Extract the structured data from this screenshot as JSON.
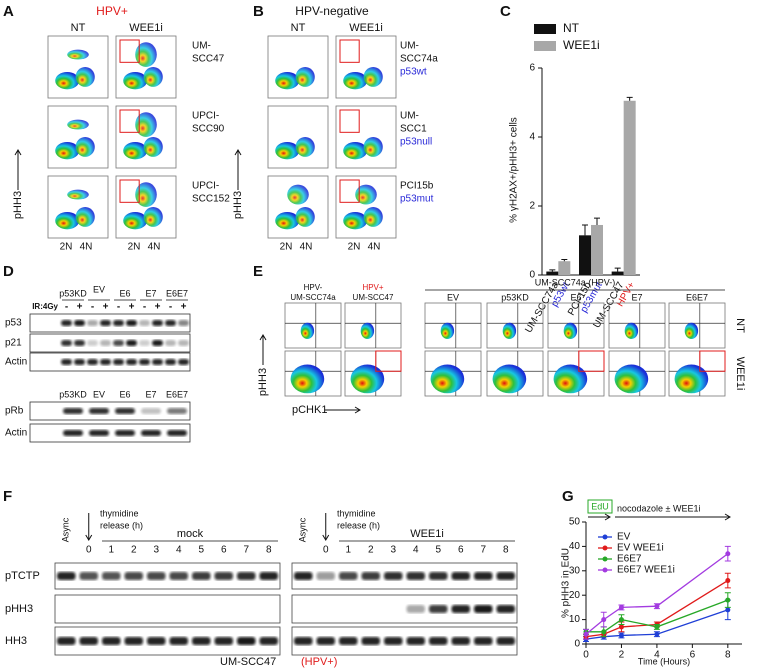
{
  "panels": {
    "A": {
      "letter": "A",
      "title": "HPV+",
      "columns": [
        "NT",
        "WEE1i"
      ],
      "rows": [
        [
          "UM-",
          "SCC47"
        ],
        [
          "UPCI-",
          "SCC90"
        ],
        [
          "UPCI-",
          "SCC152"
        ]
      ],
      "y_axis": "pHH3",
      "x_ticks": [
        "2N",
        "4N"
      ]
    },
    "B": {
      "letter": "B",
      "title": "HPV-negative",
      "columns": [
        "NT",
        "WEE1i"
      ],
      "rows": [
        {
          "lines": [
            "UM-",
            "SCC74a"
          ],
          "status": "p53wt"
        },
        {
          "lines": [
            "UM-",
            "SCC1"
          ],
          "status": "p53null"
        },
        {
          "lines": [
            "PCI15b"
          ],
          "status": "p53mut"
        }
      ],
      "y_axis": "pHH3",
      "x_ticks": [
        "2N",
        "4N"
      ]
    },
    "C": {
      "letter": "C"
    },
    "D": {
      "letter": "D",
      "treatment": "IR:4Gy",
      "signs": [
        "-",
        "+",
        "-",
        "+",
        "-",
        "+",
        "-",
        "+",
        "-",
        "+"
      ],
      "groups": [
        "p53KD",
        "EV",
        "E6",
        "E7",
        "E6E7"
      ],
      "rows": [
        "p53",
        "p21",
        "Actin"
      ],
      "lower_lanes": [
        "p53KD",
        "EV",
        "E6",
        "E7",
        "E6E7"
      ],
      "lower_rows": [
        "pRb",
        "Actin"
      ]
    },
    "E": {
      "letter": "E",
      "controls": [
        [
          "HPV-",
          "UM-SCC74a"
        ],
        [
          "HPV+",
          "UM-SCC47"
        ]
      ],
      "group": "UM-SCC74a (HPV-)",
      "lanes": [
        "EV",
        "p53KD",
        "E6",
        "E7",
        "E6E7"
      ],
      "rows": [
        "NT",
        "WEE1i"
      ],
      "y_axis": "pHH3",
      "x_axis": "pCHK1"
    },
    "F": {
      "letter": "F",
      "blots": [
        {
          "lanes": [
            "Async",
            "0",
            "1",
            "2",
            "3",
            "4",
            "5",
            "6",
            "7",
            "8"
          ],
          "release": [
            "thymidine",
            "release (h)"
          ],
          "condition": "mock"
        },
        {
          "lanes": [
            "Async",
            "0",
            "1",
            "2",
            "3",
            "4",
            "5",
            "6",
            "7",
            "8"
          ],
          "release": [
            "thymidine",
            "release (h)"
          ],
          "condition": "WEE1i"
        }
      ],
      "rows": [
        "pTCTP",
        "pHH3",
        "HH3"
      ],
      "cell_line": "UM-SCC47",
      "cell_status": "(HPV+)"
    },
    "G": {
      "letter": "G"
    }
  },
  "chart_data": [
    {
      "type": "bar",
      "y_label": "% γH2AX+/pHH3+ cells",
      "categories": [
        "UM-SCC74a",
        "PCI-15b",
        "UM-SCC47"
      ],
      "category_sublabels": [
        "p53wt",
        "p53mut",
        "HPV+"
      ],
      "sublabel_colors": [
        "#2a2ad8",
        "#2a2ad8",
        "#e01b1b"
      ],
      "series": [
        {
          "name": "NT",
          "color": "#111111",
          "values": [
            0.1,
            1.15,
            0.1
          ],
          "errors": [
            0.05,
            0.3,
            0.1
          ]
        },
        {
          "name": "WEE1i",
          "color": "#a8a8a8",
          "values": [
            0.4,
            1.45,
            5.05
          ],
          "errors": [
            0.05,
            0.2,
            0.1
          ]
        }
      ],
      "ylim": [
        0,
        6
      ],
      "yticks": [
        0,
        2,
        4,
        6
      ]
    },
    {
      "type": "line",
      "annotations": [
        "EdU",
        "nocodazole ± WEE1i"
      ],
      "x_label": "Time (Hours)",
      "y_label": "% pHH3 in EdU",
      "x": [
        0,
        1,
        2,
        4,
        8
      ],
      "series": [
        {
          "name": "EV",
          "color": "#1f3fd6",
          "values": [
            2,
            3,
            3.5,
            4,
            14
          ],
          "errors": [
            1,
            1,
            1,
            1,
            4
          ]
        },
        {
          "name": "EV WEE1i",
          "color": "#e01b1b",
          "values": [
            3,
            4,
            7,
            8,
            26
          ],
          "errors": [
            1,
            1,
            2,
            1,
            3
          ]
        },
        {
          "name": "E6E7",
          "color": "#27a827",
          "values": [
            5,
            5,
            10,
            7,
            18
          ],
          "errors": [
            1,
            2,
            2,
            1,
            3
          ]
        },
        {
          "name": "E6E7 WEE1i",
          "color": "#a33be0",
          "values": [
            4,
            10,
            15,
            15.5,
            37
          ],
          "errors": [
            2,
            3,
            1,
            1,
            3
          ]
        }
      ],
      "xlim": [
        0,
        8.8
      ],
      "xticks": [
        0,
        2,
        4,
        6,
        8
      ],
      "ylim": [
        0,
        50
      ],
      "yticks": [
        0,
        10,
        20,
        30,
        40,
        50
      ]
    }
  ]
}
